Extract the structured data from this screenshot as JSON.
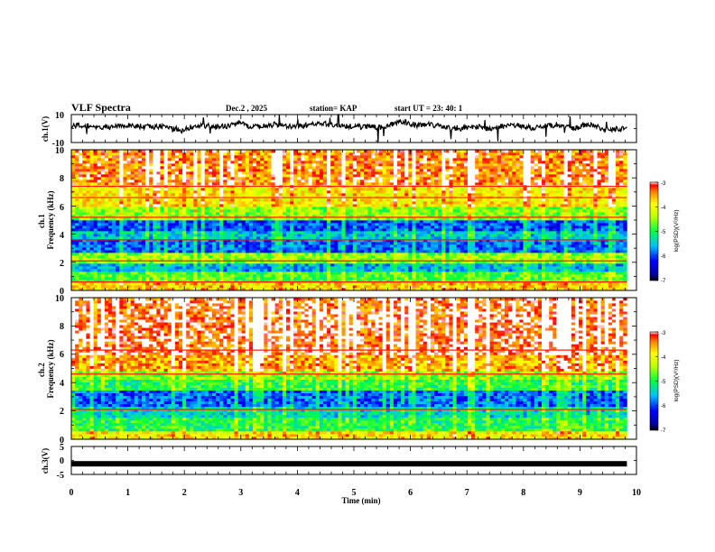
{
  "header": {
    "title": "VLF Spectra",
    "date": "Dec.2 , 2025",
    "station": "station= KAP",
    "start": "start UT = 23: 40: 1"
  },
  "chart_data": [
    {
      "type": "line",
      "name": "ch1-waveform",
      "ylabel": "ch.1(V)",
      "xlim": [
        0,
        10
      ],
      "ylim": [
        -10,
        10
      ],
      "yticks": [
        "10",
        "-10"
      ],
      "x_end": 9.83,
      "approx_level": 1.5,
      "approx_variation": 3.5
    },
    {
      "type": "heatmap",
      "name": "ch1-spectrogram",
      "ylabel": "ch.1\nFrequency (kHz)",
      "xlim": [
        0,
        10
      ],
      "ylim": [
        0,
        10
      ],
      "yticks": [
        "0",
        "2",
        "4",
        "6",
        "8",
        "10"
      ],
      "x_end": 9.83,
      "colorbar": {
        "label": "log(PSD)(V²/Hz)",
        "min": -7,
        "max": -3,
        "ticks": [
          "-3",
          "-4",
          "-5",
          "-6",
          "-7"
        ]
      },
      "bands": [
        {
          "from_khz": 0.0,
          "to_khz": 0.5,
          "level": -3.8
        },
        {
          "from_khz": 0.5,
          "to_khz": 1.3,
          "level": -4.8
        },
        {
          "from_khz": 1.3,
          "to_khz": 1.9,
          "level": -5.6
        },
        {
          "from_khz": 1.9,
          "to_khz": 2.6,
          "level": -4.6
        },
        {
          "from_khz": 2.6,
          "to_khz": 3.6,
          "level": -5.9
        },
        {
          "from_khz": 3.6,
          "to_khz": 4.3,
          "level": -5.5
        },
        {
          "from_khz": 4.3,
          "to_khz": 5.0,
          "level": -6.0
        },
        {
          "from_khz": 5.0,
          "to_khz": 6.0,
          "level": -4.6
        },
        {
          "from_khz": 6.0,
          "to_khz": 7.5,
          "level": -3.9
        },
        {
          "from_khz": 7.5,
          "to_khz": 10.0,
          "level": -3.4
        }
      ],
      "lines_khz": [
        0.6,
        2.1,
        3.6,
        5.2,
        6.6,
        7.4
      ]
    },
    {
      "type": "heatmap",
      "name": "ch2-spectrogram",
      "ylabel": "ch.2\nFrequency (kHz)",
      "xlim": [
        0,
        10
      ],
      "ylim": [
        0,
        10
      ],
      "yticks": [
        "0",
        "2",
        "4",
        "6",
        "8",
        "10"
      ],
      "x_end": 9.83,
      "colorbar": {
        "label": "log(PSD)(V²/Hz)",
        "min": -7,
        "max": -3,
        "ticks": [
          "-3",
          "-4",
          "-5",
          "-6",
          "-7"
        ]
      },
      "bands": [
        {
          "from_khz": 0.0,
          "to_khz": 0.5,
          "level": -3.9
        },
        {
          "from_khz": 0.5,
          "to_khz": 1.6,
          "level": -5.0
        },
        {
          "from_khz": 1.6,
          "to_khz": 2.3,
          "level": -5.4
        },
        {
          "from_khz": 2.3,
          "to_khz": 3.4,
          "level": -5.9
        },
        {
          "from_khz": 3.4,
          "to_khz": 4.2,
          "level": -5.0
        },
        {
          "from_khz": 4.2,
          "to_khz": 4.8,
          "level": -4.6
        },
        {
          "from_khz": 4.8,
          "to_khz": 6.0,
          "level": -3.6
        },
        {
          "from_khz": 6.0,
          "to_khz": 10.0,
          "level": -3.2
        }
      ],
      "lines_khz": [
        2.1,
        4.6,
        6.3
      ]
    },
    {
      "type": "line",
      "name": "ch3-waveform",
      "ylabel": "ch.3(V)",
      "xlabel": "Time (min)",
      "xlim": [
        0,
        10
      ],
      "ylim": [
        -5,
        5
      ],
      "yticks": [
        "5",
        "0",
        "-5"
      ],
      "xticks": [
        "0",
        "1",
        "2",
        "3",
        "4",
        "5",
        "6",
        "7",
        "8",
        "9",
        "10"
      ],
      "x_end": 9.83,
      "level": -1.2
    }
  ]
}
